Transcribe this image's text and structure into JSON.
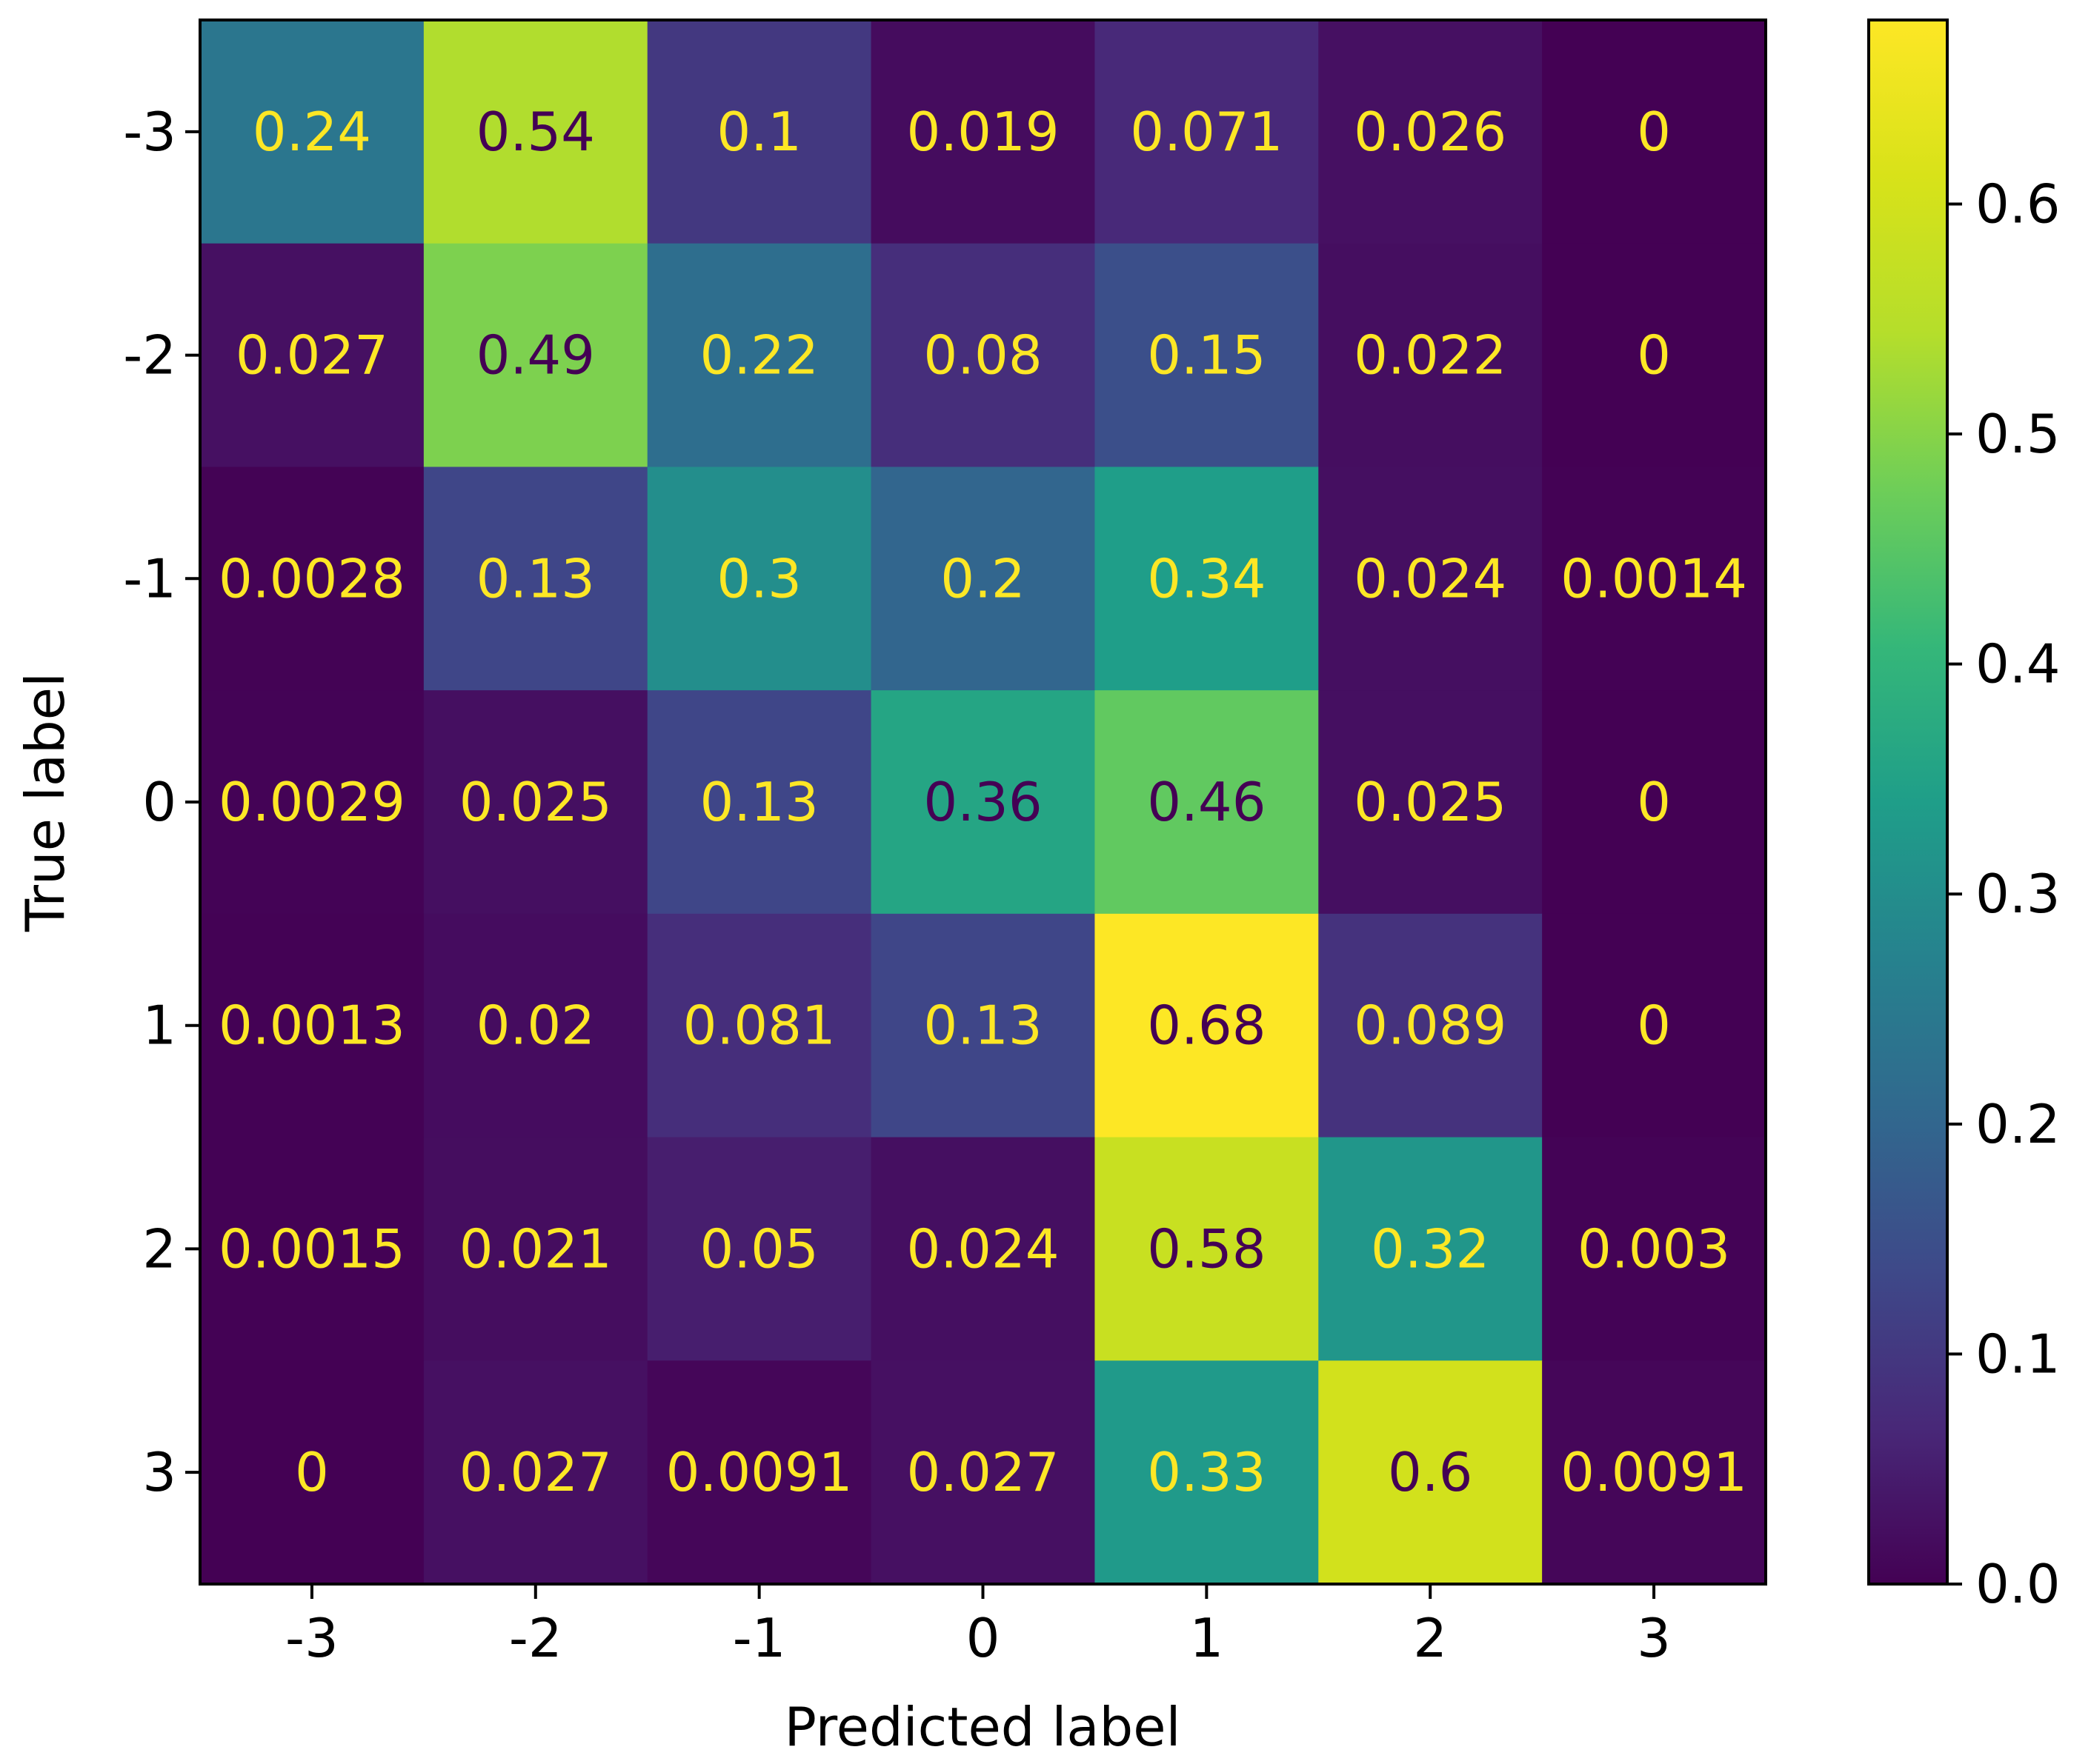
{
  "chart_data": {
    "type": "heatmap",
    "title": "",
    "xlabel": "Predicted label",
    "ylabel": "True label",
    "x_categories": [
      "-3",
      "-2",
      "-1",
      "0",
      "1",
      "2",
      "3"
    ],
    "y_categories": [
      "-3",
      "-2",
      "-1",
      "0",
      "1",
      "2",
      "3"
    ],
    "cells": [
      [
        "0.24",
        "0.54",
        "0.1",
        "0.019",
        "0.071",
        "0.026",
        "0"
      ],
      [
        "0.027",
        "0.49",
        "0.22",
        "0.08",
        "0.15",
        "0.022",
        "0"
      ],
      [
        "0.0028",
        "0.13",
        "0.3",
        "0.2",
        "0.34",
        "0.024",
        "0.0014"
      ],
      [
        "0.0029",
        "0.025",
        "0.13",
        "0.36",
        "0.46",
        "0.025",
        "0"
      ],
      [
        "0.0013",
        "0.02",
        "0.081",
        "0.13",
        "0.68",
        "0.089",
        "0"
      ],
      [
        "0.0015",
        "0.021",
        "0.05",
        "0.024",
        "0.58",
        "0.32",
        "0.003"
      ],
      [
        "0",
        "0.027",
        "0.0091",
        "0.027",
        "0.33",
        "0.6",
        "0.0091"
      ]
    ],
    "colormap": "viridis",
    "colorbar": {
      "range": [
        0,
        0.68
      ],
      "ticks": [
        0.0,
        0.1,
        0.2,
        0.3,
        0.4,
        0.5,
        0.6
      ],
      "tick_labels": [
        "0.0",
        "0.1",
        "0.2",
        "0.3",
        "0.4",
        "0.5",
        "0.6"
      ]
    },
    "text_colors": {
      "light": "#fde725",
      "dark": "#440154"
    },
    "threshold": 0.34
  }
}
